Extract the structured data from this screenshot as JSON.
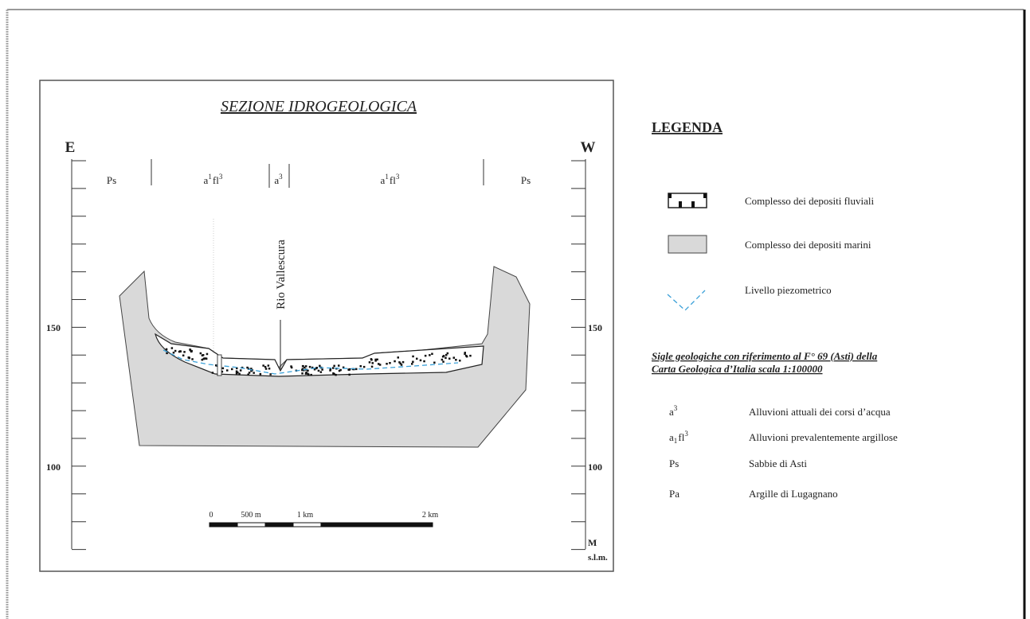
{
  "section": {
    "title": "SEZIONE IDROGEOLOGICA",
    "east": "E",
    "west": "W",
    "river": "Rio Vallescura",
    "units": [
      [
        {
          "text": "Ps"
        }
      ],
      [
        {
          "text": "a"
        },
        {
          "sup": "1"
        },
        {
          "text": "fl"
        },
        {
          "sup": "3"
        }
      ],
      [
        {
          "text": "a"
        },
        {
          "sup": "3"
        }
      ],
      [
        {
          "text": "a"
        },
        {
          "sup": "1"
        },
        {
          "text": "fl"
        },
        {
          "sup": "3"
        }
      ],
      [
        {
          "text": "Ps"
        }
      ]
    ],
    "left_axis": [
      "150",
      "100"
    ],
    "right_axis": [
      "150",
      "100"
    ],
    "axis_unit": [
      "M",
      "s.l.m."
    ],
    "scale_bar": [
      "0",
      "500 m",
      "1 km",
      "2 km"
    ]
  },
  "legend": {
    "title": "LEGENDA",
    "items": [
      "Complesso dei depositi fluviali",
      "Complesso dei depositi marini",
      "Livello piezometrico"
    ],
    "sigle_title": [
      "Sigle geologiche con riferimento al F° 69 (Asti) della",
      "Carta Geologica d’Italia scala 1:100000"
    ],
    "sigle": [
      {
        "code": [
          {
            "text": "a"
          },
          {
            "sup": "3"
          }
        ],
        "desc": "Alluvioni attuali dei corsi d’acqua"
      },
      {
        "code": [
          {
            "text": "a"
          },
          {
            "sub": "1"
          },
          {
            "text": "fl"
          },
          {
            "sup": "3"
          }
        ],
        "desc": "Alluvioni prevalentemente argillose"
      },
      {
        "code": [
          {
            "text": "Ps"
          }
        ],
        "desc": "Sabbie di Asti"
      },
      {
        "code": [
          {
            "text": "Pa"
          }
        ],
        "desc": "Argille di Lugagnano"
      }
    ]
  }
}
